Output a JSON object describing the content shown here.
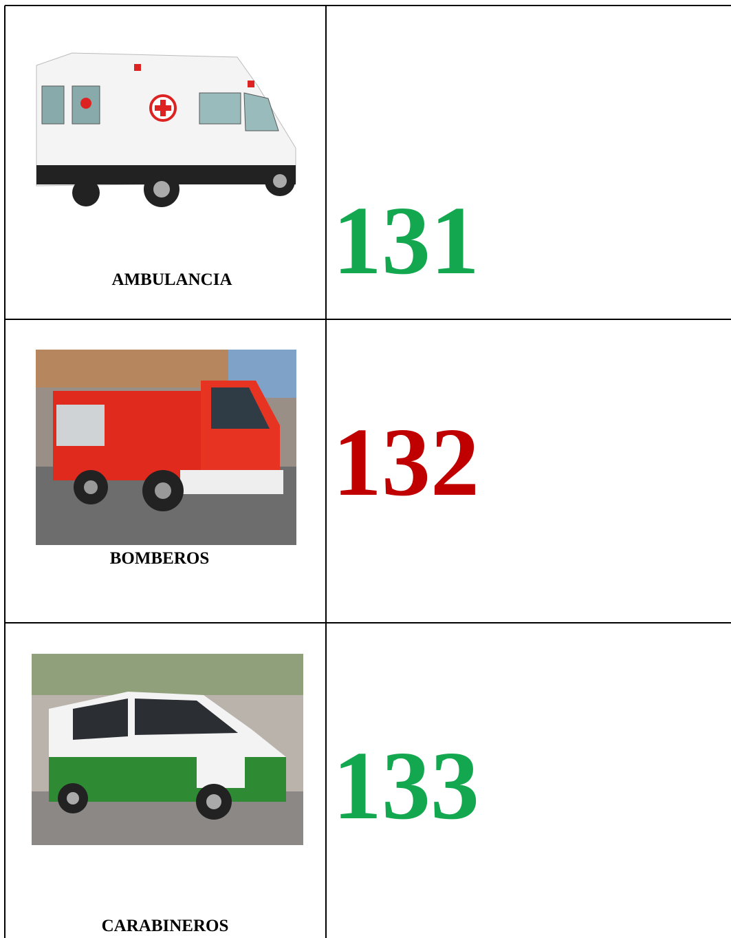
{
  "table": {
    "rows": [
      {
        "label": "AMBULANCIA",
        "number": "131",
        "color": "#13a84f"
      },
      {
        "label": "BOMBEROS",
        "number": "132",
        "color": "#c00000"
      },
      {
        "label": "CARABINEROS",
        "number": "133",
        "color": "#13a84f"
      }
    ]
  }
}
